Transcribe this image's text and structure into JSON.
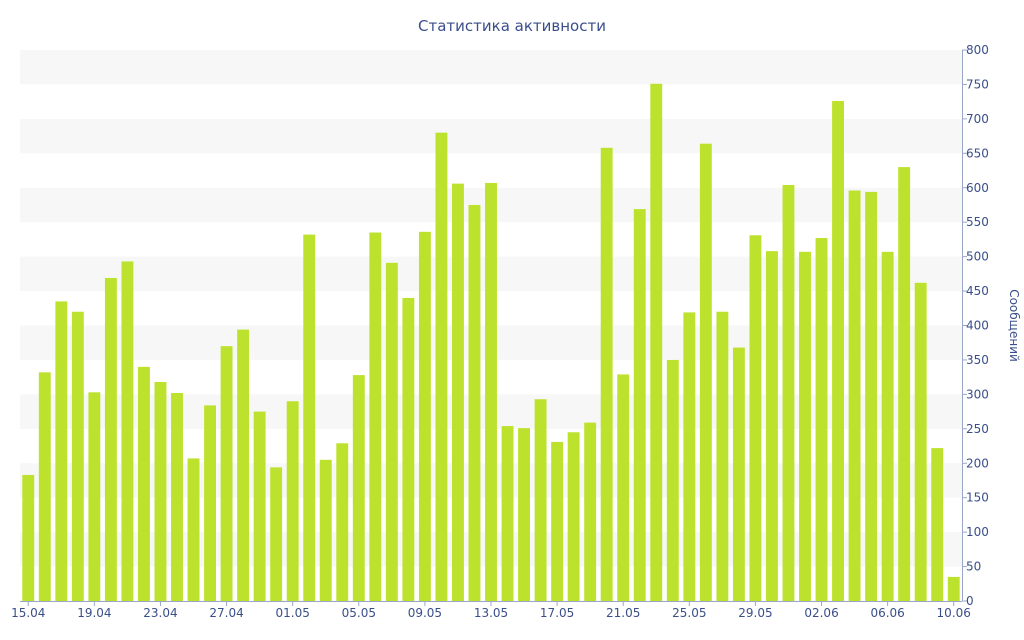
{
  "chart_data": {
    "type": "bar",
    "title": "Статистика активности",
    "xlabel": "",
    "ylabel": "Сообщений",
    "ylim": [
      0,
      800
    ],
    "y_ticks": [
      0,
      50,
      100,
      150,
      200,
      250,
      300,
      350,
      400,
      450,
      500,
      550,
      600,
      650,
      700,
      750,
      800
    ],
    "y_axis_position": "right",
    "grid": "alternating horizontal bands",
    "bar_color": "#bde22e",
    "band_color": "#f7f7f7",
    "text_color": "#3a4f8a",
    "categories": [
      "15.04",
      "16.04",
      "17.04",
      "18.04",
      "19.04",
      "20.04",
      "21.04",
      "22.04",
      "23.04",
      "24.04",
      "25.04",
      "26.04",
      "27.04",
      "28.04",
      "29.04",
      "30.04",
      "01.05",
      "02.05",
      "03.05",
      "04.05",
      "05.05",
      "06.05",
      "07.05",
      "08.05",
      "09.05",
      "10.05",
      "11.05",
      "12.05",
      "13.05",
      "14.05",
      "15.05",
      "16.05",
      "17.05",
      "18.05",
      "19.05",
      "20.05",
      "21.05",
      "22.05",
      "23.05",
      "24.05",
      "25.05",
      "26.05",
      "27.05",
      "28.05",
      "29.05",
      "30.05",
      "31.05",
      "01.06",
      "02.06",
      "03.06",
      "04.06",
      "05.06",
      "06.06",
      "07.06",
      "08.06",
      "09.06",
      "10.06"
    ],
    "x_tick_labels": [
      "15.04",
      "19.04",
      "23.04",
      "27.04",
      "01.05",
      "05.05",
      "09.05",
      "13.05",
      "17.05",
      "21.05",
      "25.05",
      "29.05",
      "02.06",
      "06.06",
      "10.06"
    ],
    "values": [
      183,
      332,
      435,
      420,
      303,
      469,
      493,
      340,
      318,
      302,
      207,
      284,
      370,
      394,
      275,
      194,
      290,
      532,
      205,
      229,
      328,
      535,
      491,
      440,
      536,
      680,
      606,
      575,
      607,
      254,
      251,
      293,
      231,
      245,
      259,
      658,
      329,
      569,
      751,
      350,
      419,
      664,
      420,
      368,
      531,
      508,
      604,
      507,
      527,
      726,
      596,
      594,
      507,
      630,
      462,
      222,
      35
    ]
  }
}
